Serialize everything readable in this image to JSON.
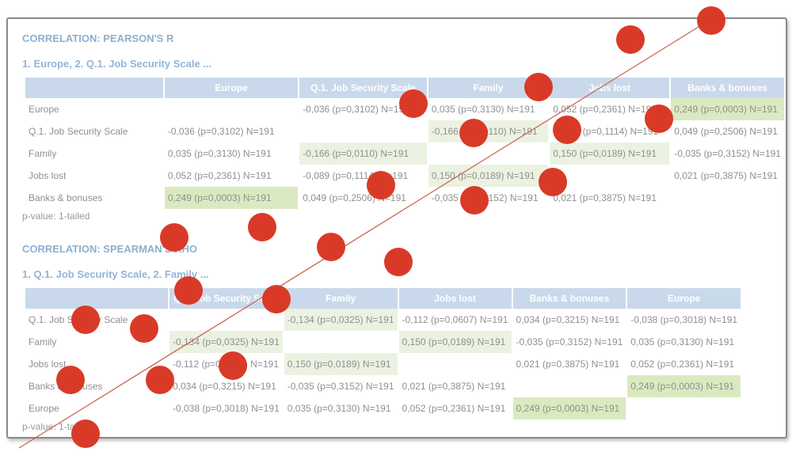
{
  "pearson": {
    "title": "CORRELATION: PEARSON'S R",
    "subtitle": "1. Europe, 2. Q.1. Job Security Scale ...",
    "columns": [
      "Europe",
      "Q.1. Job Security Scale",
      "Family",
      "Jobs lost",
      "Banks & bonuses"
    ],
    "rows": [
      {
        "label": "Europe",
        "cells": [
          "",
          "-0,036 (p=0,3102) N=191",
          "0,035 (p=0,3130) N=191",
          "0,052 (p=0,2361) N=191",
          "0,249 (p=0,0003) N=191"
        ]
      },
      {
        "label": "Q.1. Job Security Scale",
        "cells": [
          "-0,036 (p=0,3102) N=191",
          "",
          "-0,166 (p=0,0110) N=191",
          "-0,089 (p=0,1114) N=191",
          "0,049 (p=0,2506) N=191"
        ]
      },
      {
        "label": "Family",
        "cells": [
          "0,035 (p=0,3130) N=191",
          "-0,166 (p=0,0110) N=191",
          "",
          "0,150 (p=0,0189) N=191",
          "-0,035 (p=0,3152) N=191"
        ]
      },
      {
        "label": "Jobs lost",
        "cells": [
          "0,052 (p=0,2361) N=191",
          "-0,089 (p=0,1114) N=191",
          "0,150 (p=0,0189) N=191",
          "",
          "0,021 (p=0,3875) N=191"
        ]
      },
      {
        "label": "Banks & bonuses",
        "cells": [
          "0,249 (p=0,0003) N=191",
          "0,049 (p=0,2506) N=191",
          "-0,035 (p=0,3152) N=191",
          "0,021 (p=0,3875) N=191",
          ""
        ]
      }
    ],
    "note": "p-value: 1-tailed"
  },
  "spearman": {
    "title": "CORRELATION: SPEARMAN'S RHO",
    "subtitle": "1. Q.1. Job Security Scale, 2. Family ...",
    "columns": [
      "Q.1. Job Security Scale",
      "Family",
      "Jobs lost",
      "Banks & bonuses",
      "Europe"
    ],
    "rows": [
      {
        "label": "Q.1. Job Security Scale",
        "cells": [
          "",
          "-0,134 (p=0,0325) N=191",
          "-0,112 (p=0,0607) N=191",
          "0,034 (p=0,3215) N=191",
          "-0,038 (p=0,3018) N=191"
        ]
      },
      {
        "label": "Family",
        "cells": [
          "-0,134 (p=0,0325) N=191",
          "",
          "0,150 (p=0,0189) N=191",
          "-0,035 (p=0,3152) N=191",
          "0,035 (p=0,3130) N=191"
        ]
      },
      {
        "label": "Jobs lost",
        "cells": [
          "-0,112 (p=0,0607) N=191",
          "0,150 (p=0,0189) N=191",
          "",
          "0,021 (p=0,3875) N=191",
          "0,052 (p=0,2361) N=191"
        ]
      },
      {
        "label": "Banks & bonuses",
        "cells": [
          "0,034 (p=0,3215) N=191",
          "-0,035 (p=0,3152) N=191",
          "0,021 (p=0,3875) N=191",
          "",
          "0,249 (p=0,0003) N=191"
        ]
      },
      {
        "label": "Europe",
        "cells": [
          "-0,038 (p=0,3018) N=191",
          "0,035 (p=0,3130) N=191",
          "0,052 (p=0,2361) N=191",
          "0,249 (p=0,0003) N=191",
          ""
        ]
      }
    ],
    "note": "p-value: 1-tailed"
  },
  "colors": {
    "dot": "#d93a27",
    "line": "#c8604a",
    "highlight_light": "#dde9c9",
    "highlight_strong": "#bcd98e",
    "header": "#9dbbdb"
  }
}
